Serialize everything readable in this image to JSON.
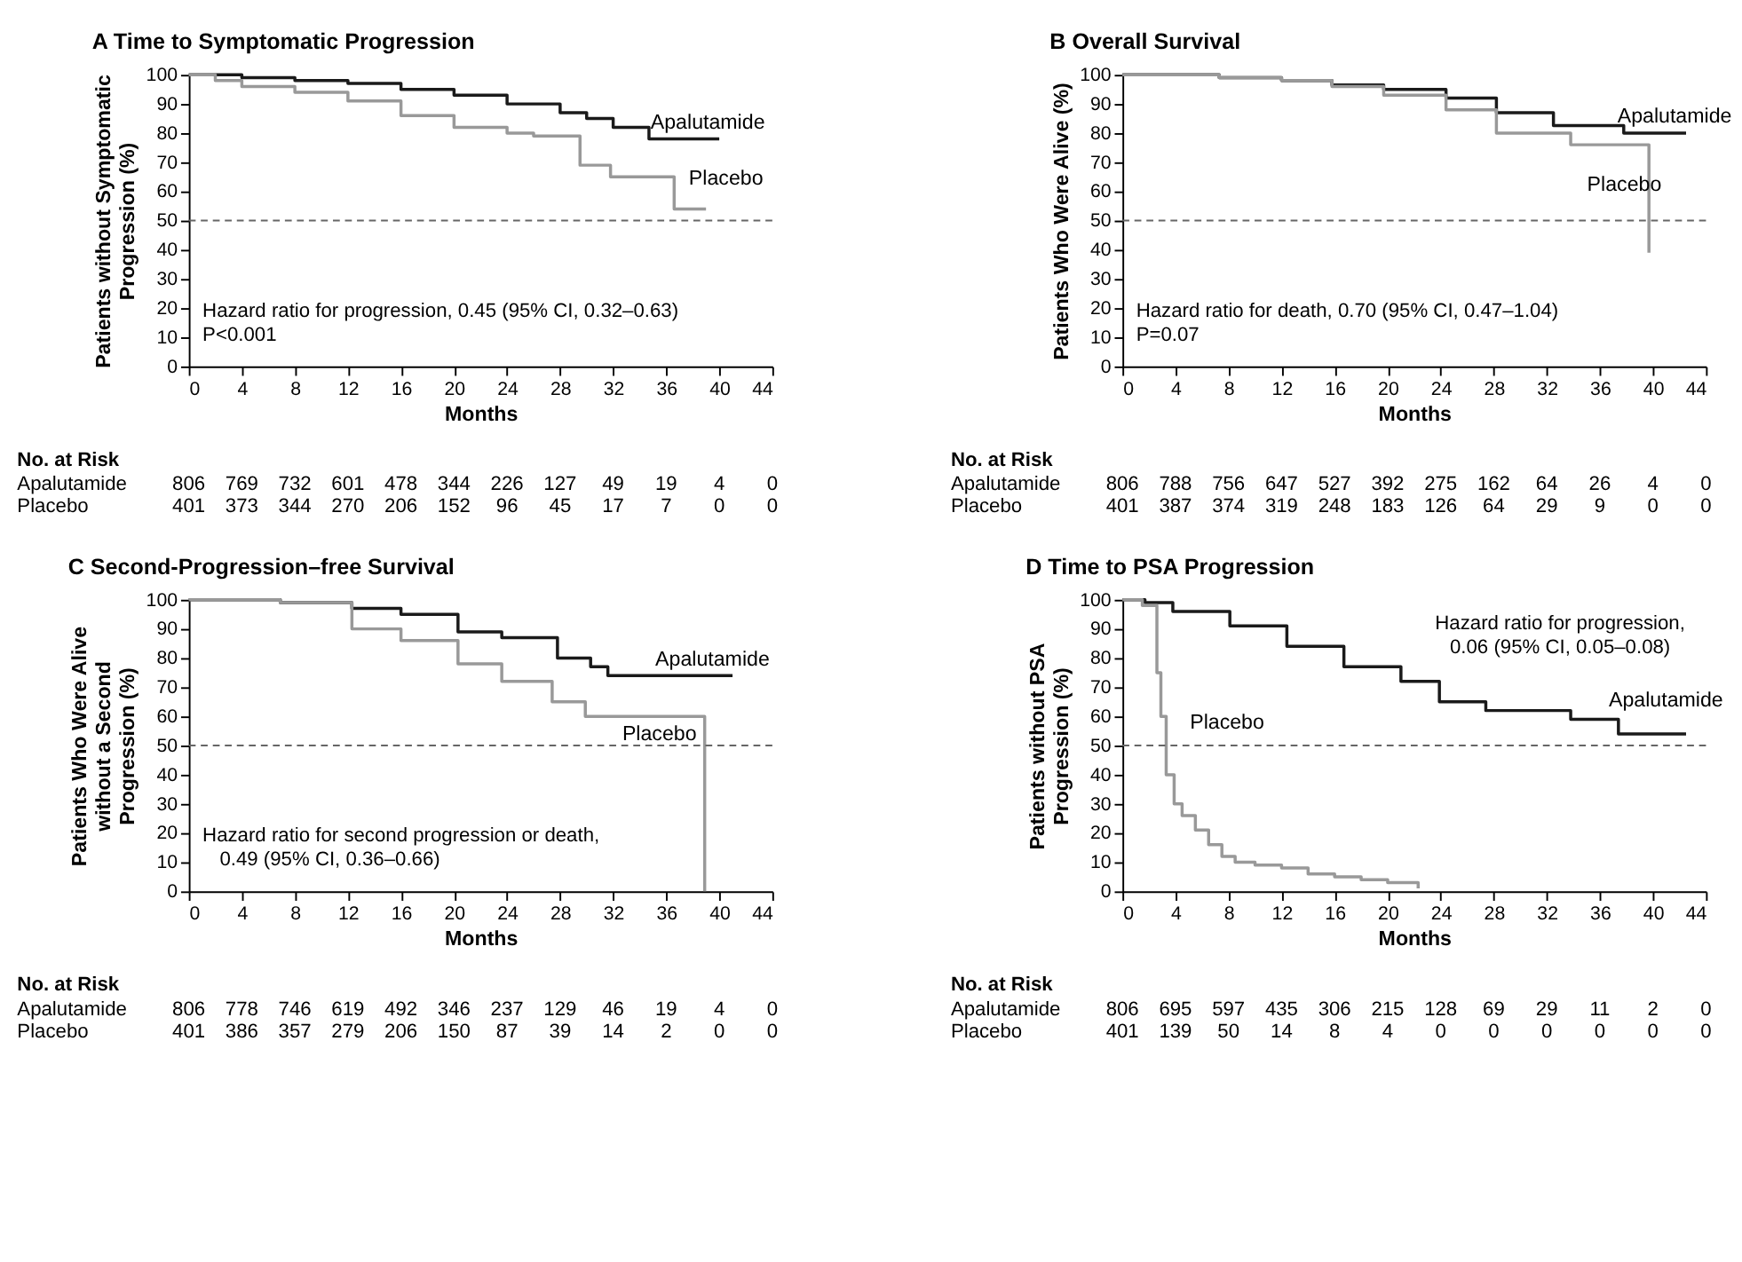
{
  "chart_data": [
    {
      "type": "step",
      "title": "A Time to Symptomatic Progression",
      "xlabel": "Months",
      "ylabel": "Patients without Symptomatic\nProgression (%)",
      "xlim": [
        0,
        44
      ],
      "ylim": [
        0,
        100
      ],
      "xticks": [
        0,
        4,
        8,
        12,
        16,
        20,
        24,
        28,
        32,
        36,
        40,
        44
      ],
      "yticks": [
        0,
        10,
        20,
        30,
        40,
        50,
        60,
        70,
        80,
        90,
        100
      ],
      "series": [
        {
          "name": "Apalutamide",
          "color": "#1a1a1a",
          "x": [
            0,
            4,
            8,
            12,
            16,
            20,
            24,
            28,
            30,
            32,
            34.7,
            40
          ],
          "values": [
            100,
            99,
            98,
            97,
            95,
            93,
            90,
            87,
            85,
            82,
            78,
            78
          ]
        },
        {
          "name": "Placebo",
          "color": "#999999",
          "x": [
            0,
            2,
            4,
            8,
            12,
            16,
            20,
            24,
            26,
            29.5,
            31.8,
            36.6,
            39
          ],
          "values": [
            100,
            98,
            96,
            94,
            91,
            86,
            82,
            80,
            79,
            69,
            65,
            54,
            54
          ]
        }
      ],
      "ref_lines": [
        {
          "axis": "y",
          "value": 50,
          "color": "#666666",
          "line_style": "dashed"
        }
      ],
      "annotations": [
        "Hazard ratio for progression, 0.45 (95% CI, 0.32–0.63)",
        "P<0.001",
        "No. at Risk",
        "Apalutamide",
        "806 769 732 601 478 344 226 127 49 19 4 0",
        "Placebo",
        "401 373 344 270 206 152 96 45 17 7 0 0"
      ]
    },
    {
      "type": "step",
      "title": "B Overall Survival",
      "xlabel": "Months",
      "ylabel": "Patients Who Were Alive (%)",
      "xlim": [
        0,
        44
      ],
      "ylim": [
        0,
        100
      ],
      "xticks": [
        0,
        4,
        8,
        12,
        16,
        20,
        24,
        28,
        32,
        36,
        40,
        44
      ],
      "yticks": [
        0,
        10,
        20,
        30,
        40,
        50,
        60,
        70,
        80,
        90,
        100
      ],
      "series": [
        {
          "name": "Apalutamide",
          "color": "#1a1a1a",
          "x": [
            0,
            7.3,
            12,
            15.8,
            19.7,
            24.4,
            28.2,
            32.5,
            37.8,
            42.5
          ],
          "values": [
            100,
            99,
            98,
            96.5,
            95,
            92,
            87,
            82.6,
            80,
            80
          ]
        },
        {
          "name": "Placebo",
          "color": "#999999",
          "x": [
            0,
            7.3,
            12,
            15.8,
            19.7,
            24.4,
            28.2,
            33.8,
            39.7
          ],
          "values": [
            100,
            99,
            98,
            96,
            93,
            88,
            80,
            76,
            39
          ]
        }
      ],
      "ref_lines": [
        {
          "axis": "y",
          "value": 50,
          "color": "#666666",
          "line_style": "dashed"
        }
      ],
      "annotations": [
        "Hazard ratio for death, 0.70 (95% CI, 0.47–1.04)",
        "P=0.07",
        "No. at Risk",
        "Apalutamide",
        "806 788 756 647 527 392 275 162 64 26 4 0",
        "Placebo",
        "401 387 374 319 248 183 126 64 29 9 0 0"
      ]
    },
    {
      "type": "step",
      "title": "C Second-Progression–free Survival",
      "xlabel": "Months",
      "ylabel": "Patients Who Were Alive\nwithout a Second\nProgression (%)",
      "xlim": [
        0,
        44
      ],
      "ylim": [
        0,
        100
      ],
      "xticks": [
        0,
        4,
        8,
        12,
        16,
        20,
        24,
        28,
        32,
        36,
        40,
        44
      ],
      "yticks": [
        0,
        10,
        20,
        30,
        40,
        50,
        60,
        70,
        80,
        90,
        100
      ],
      "series": [
        {
          "name": "Apalutamide",
          "color": "#1a1a1a",
          "x": [
            0,
            6.9,
            12.3,
            16,
            20.3,
            23.6,
            27.8,
            30.3,
            31.6,
            41
          ],
          "values": [
            100,
            99,
            97,
            95,
            89,
            87,
            80,
            77,
            74,
            74
          ]
        },
        {
          "name": "Placebo",
          "color": "#999999",
          "x": [
            0,
            6.9,
            12.3,
            16,
            20.3,
            23.6,
            27.4,
            29.9,
            38.9
          ],
          "values": [
            100,
            99,
            90,
            86,
            78,
            72,
            65,
            60,
            0
          ]
        }
      ],
      "ref_lines": [
        {
          "axis": "y",
          "value": 50,
          "color": "#666666",
          "line_style": "dashed"
        }
      ],
      "annotations": [
        "Hazard ratio for second progression or death,",
        "0.49 (95% CI, 0.36–0.66)",
        "No. at Risk",
        "Apalutamide",
        "806 778 746 619 492 346 237 129 46 19 4 0",
        "Placebo",
        "401 386 357 279 206 150 87 39 14 2 0 0"
      ]
    },
    {
      "type": "step",
      "title": "D Time to PSA Progression",
      "xlabel": "Months",
      "ylabel": "Patients without PSA\nProgression (%)",
      "xlim": [
        0,
        44
      ],
      "ylim": [
        0,
        100
      ],
      "xticks": [
        0,
        4,
        8,
        12,
        16,
        20,
        24,
        28,
        32,
        36,
        40,
        44
      ],
      "yticks": [
        0,
        10,
        20,
        30,
        40,
        50,
        60,
        70,
        80,
        90,
        100
      ],
      "series": [
        {
          "name": "Apalutamide",
          "color": "#1a1a1a",
          "x": [
            0,
            1.7,
            3.8,
            8.1,
            12.4,
            16.7,
            21,
            23.9,
            27.4,
            33.8,
            37.4,
            42.5
          ],
          "values": [
            100,
            99,
            96,
            91,
            84,
            77,
            72,
            65,
            62,
            59,
            54,
            54
          ]
        },
        {
          "name": "Placebo",
          "color": "#999999",
          "x": [
            0,
            1.5,
            2.6,
            2.9,
            3.3,
            3.9,
            4.5,
            5.5,
            6.5,
            7.5,
            8.5,
            10,
            12,
            14,
            16,
            18,
            20,
            22.3
          ],
          "values": [
            100,
            98,
            75,
            60,
            40,
            30,
            26,
            21,
            16,
            12,
            10,
            9,
            8,
            6,
            5,
            4,
            3,
            1
          ]
        }
      ],
      "ref_lines": [
        {
          "axis": "y",
          "value": 50,
          "color": "#666666",
          "line_style": "dashed"
        }
      ],
      "annotations": [
        "Hazard ratio for progression,",
        "0.06 (95% CI, 0.05–0.08)",
        "No. at Risk",
        "Apalutamide",
        "806 695 597 435 306 215 128 69 29 11 2 0",
        "Placebo",
        "401 139 50 14 8 4 0 0 0 0 0 0"
      ]
    }
  ]
}
